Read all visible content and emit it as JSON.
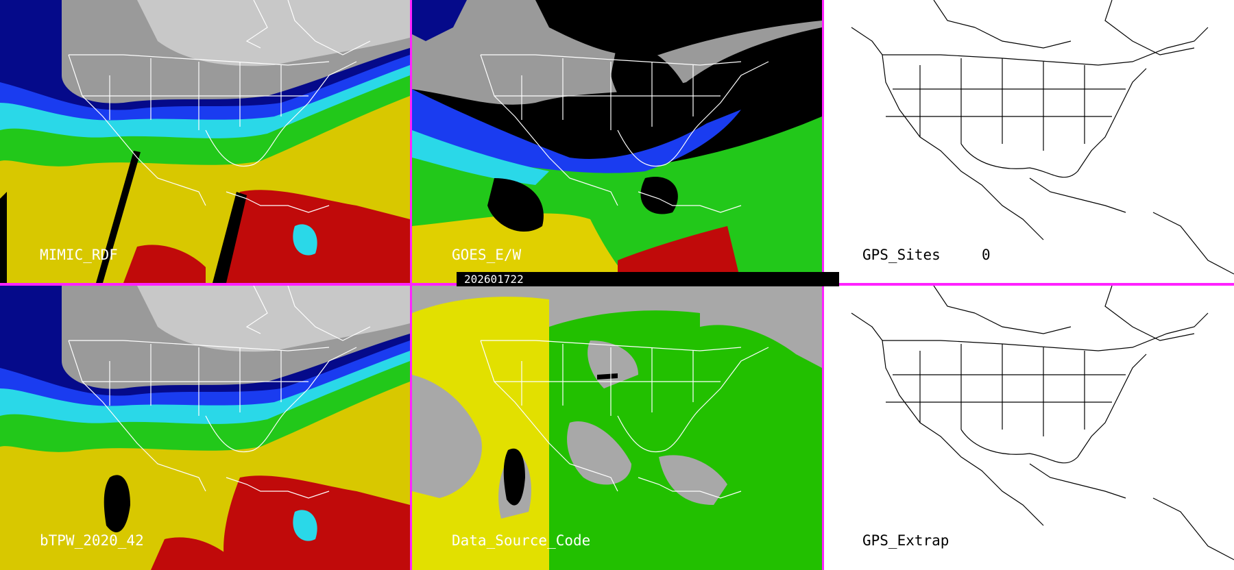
{
  "panels": [
    {
      "id": "p1",
      "label": "MIMIC_RDF",
      "type": "tpw-color"
    },
    {
      "id": "p2",
      "label": "GOES_E/W",
      "type": "tpw-color-masked"
    },
    {
      "id": "p3",
      "label": "GPS_Sites",
      "count": "0",
      "type": "outline-map"
    },
    {
      "id": "p4",
      "label": "bTPW_2020_42",
      "type": "tpw-color"
    },
    {
      "id": "p5",
      "label": "Data_Source_Code",
      "type": "source-code-map"
    },
    {
      "id": "p6",
      "label": "GPS_Extrap",
      "type": "outline-map"
    }
  ],
  "timestamp": "202601722",
  "colors": {
    "divider": "#ff22ff",
    "tpw_low": "#9a9a9a",
    "tpw_dark_blue": "#050a8a",
    "tpw_blue": "#1a3cf0",
    "tpw_cyan": "#2ad8e8",
    "tpw_green": "#22c81a",
    "tpw_yellow": "#e0d000",
    "tpw_red": "#c00a0a",
    "source_gray": "#a8a8a8",
    "source_yellow": "#e2e000",
    "source_green": "#22c000"
  }
}
